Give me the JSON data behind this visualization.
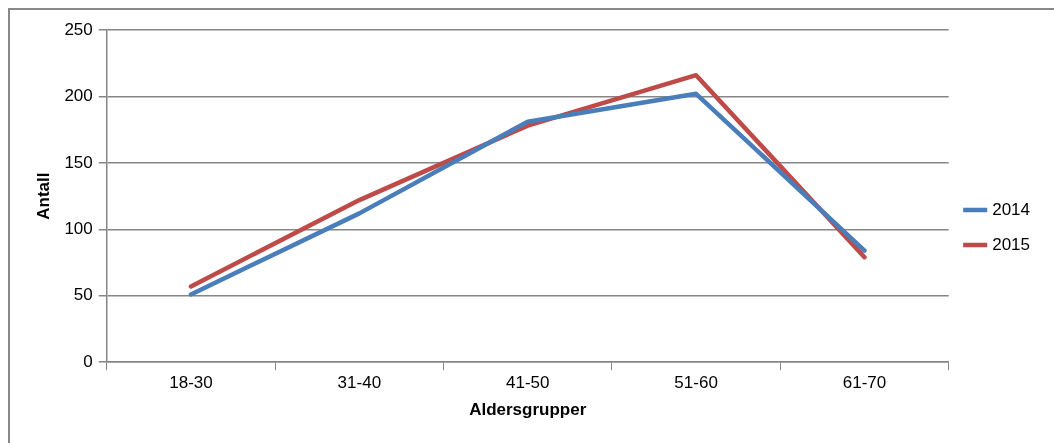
{
  "chart_data": {
    "type": "line",
    "xlabel": "Aldersgrupper",
    "ylabel": "Antall",
    "categories": [
      "18-30",
      "31-40",
      "41-50",
      "51-60",
      "61-70"
    ],
    "series": [
      {
        "name": "2014",
        "color": "#4a7ebb",
        "values": [
          51,
          112,
          181,
          202,
          84
        ]
      },
      {
        "name": "2015",
        "color": "#be4b48",
        "values": [
          57,
          122,
          178,
          216,
          79
        ]
      }
    ],
    "ylim": [
      0,
      250
    ],
    "yticks": [
      0,
      50,
      100,
      150,
      200,
      250
    ],
    "grid": "y",
    "legend": "right",
    "marker": "none",
    "line_style": "solid"
  }
}
